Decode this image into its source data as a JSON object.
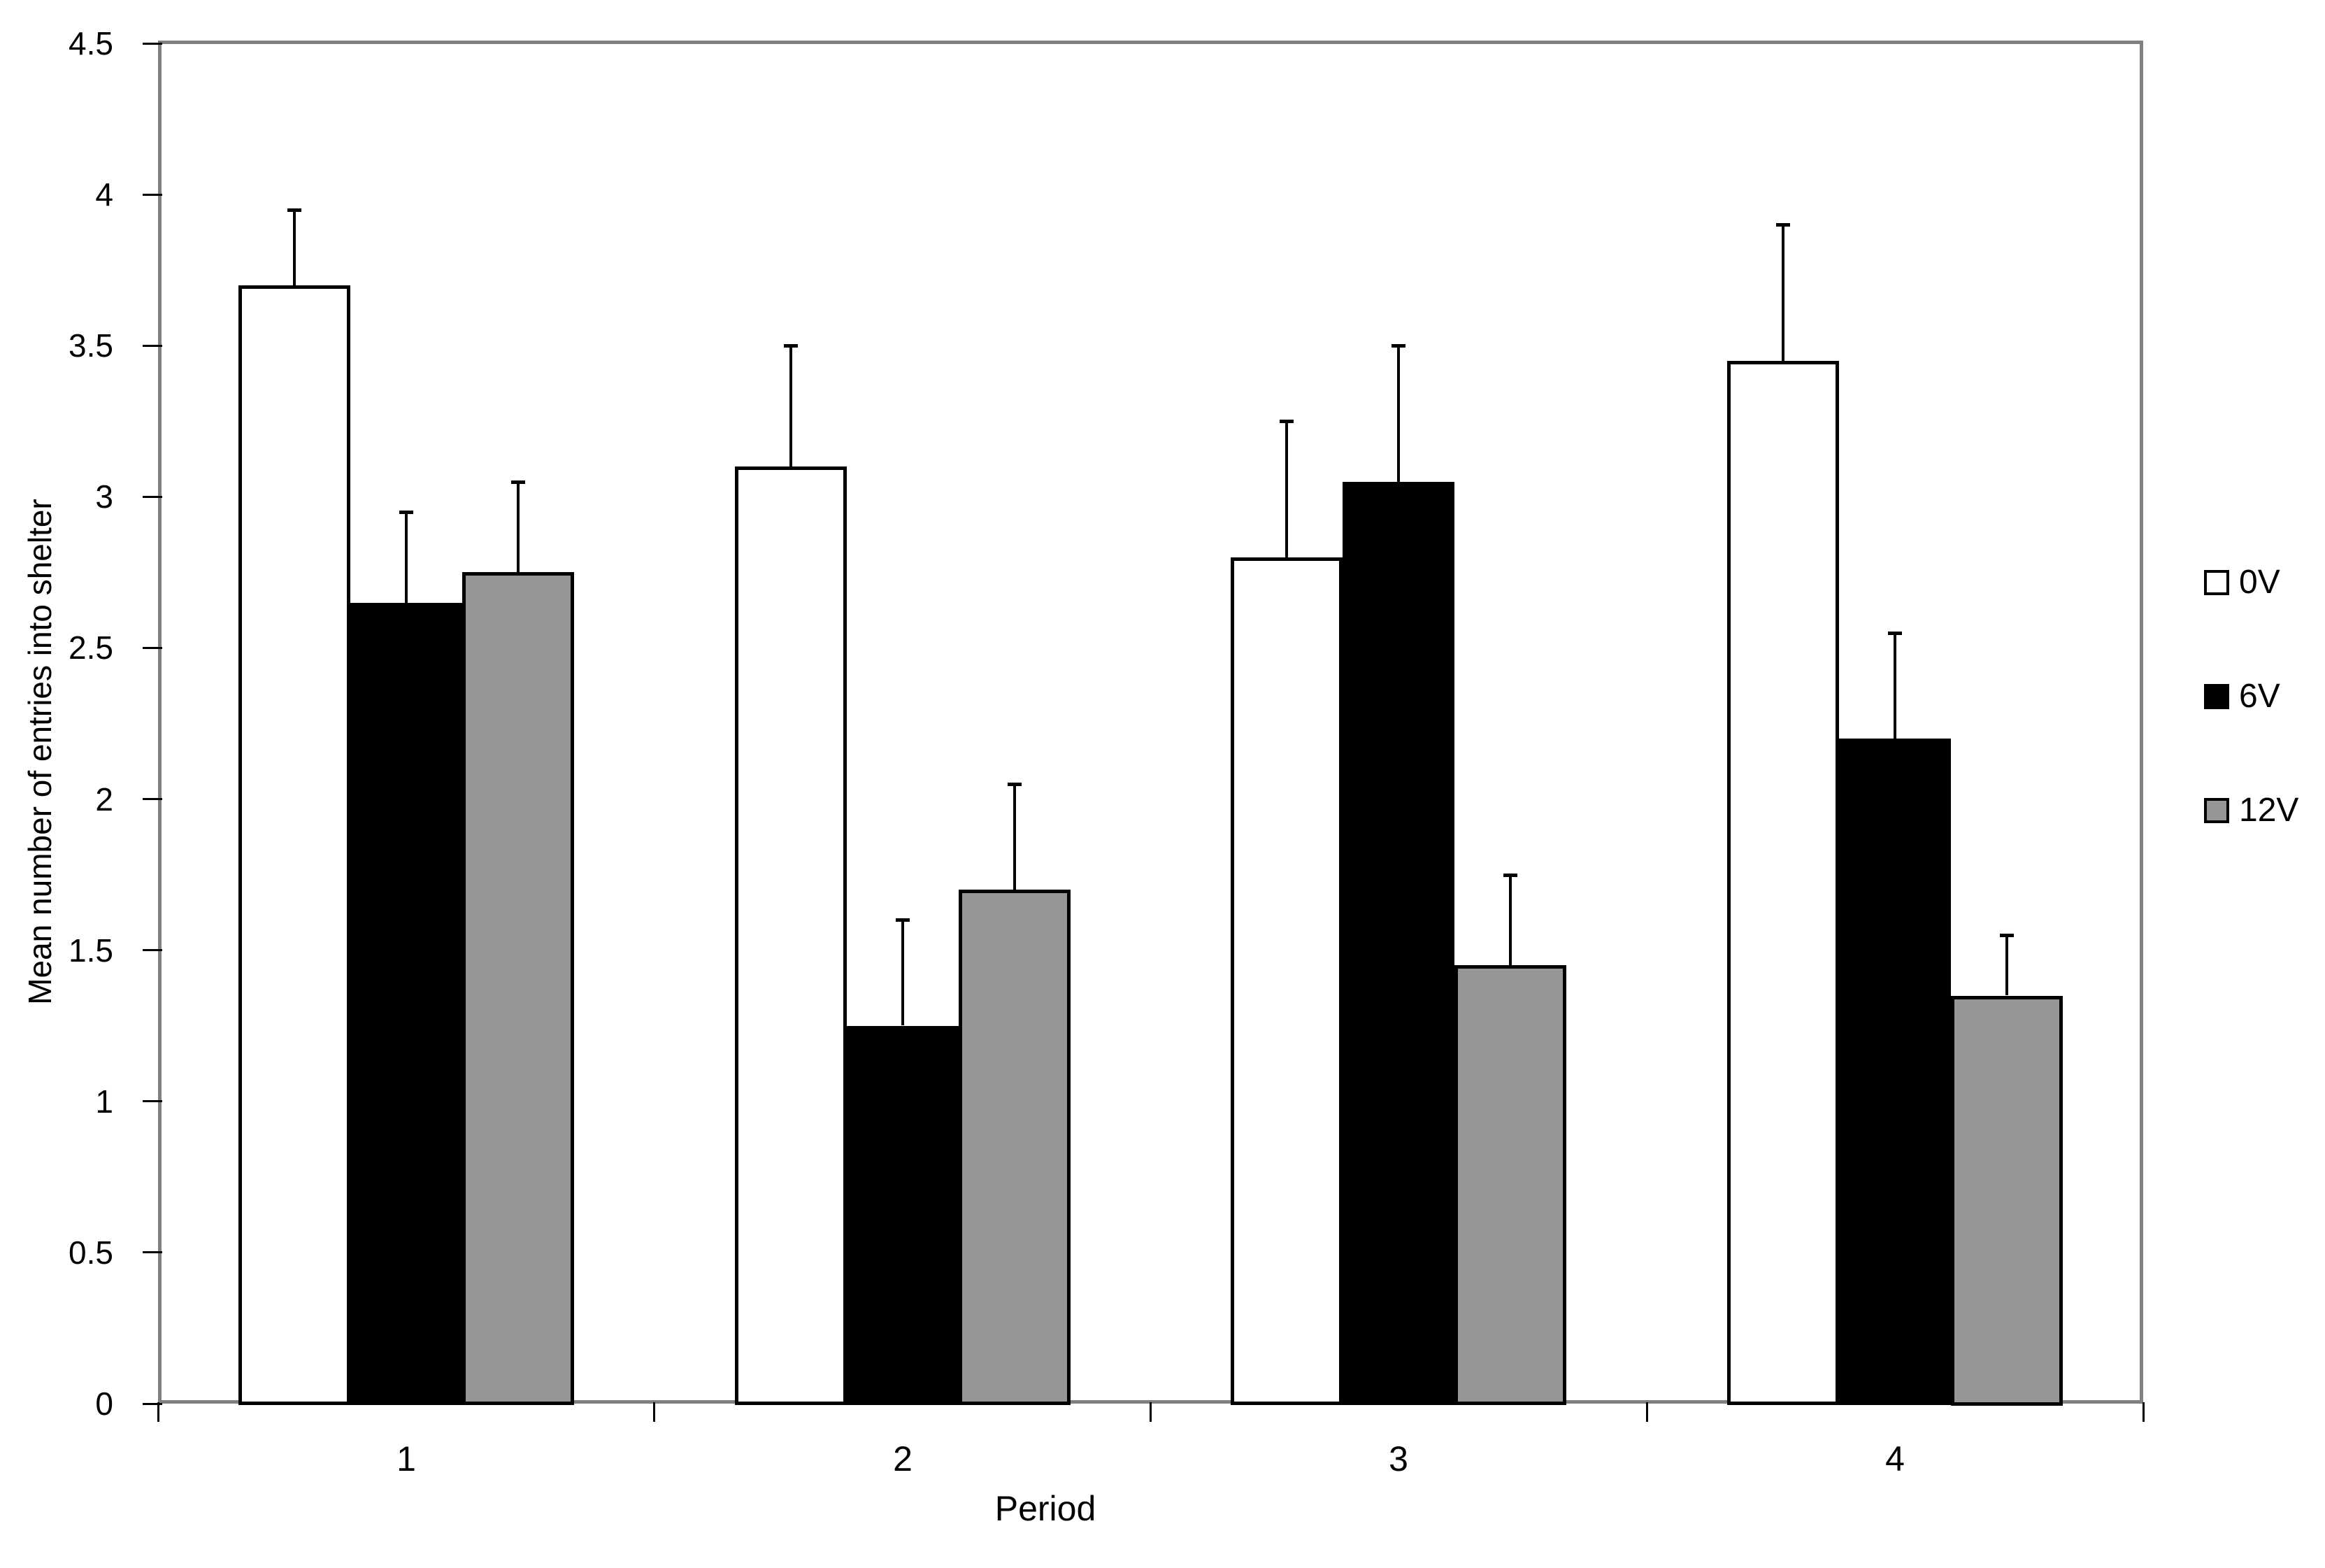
{
  "chart_data": {
    "type": "bar",
    "title": "",
    "xlabel": "Period",
    "ylabel": "Mean number of entries into shelter",
    "categories": [
      "1",
      "2",
      "3",
      "4"
    ],
    "series": [
      {
        "name": "0V",
        "fill": "#FFFFFF",
        "values": [
          3.7,
          3.1,
          2.8,
          3.45
        ],
        "error_plus": [
          0.25,
          0.4,
          0.45,
          0.45
        ]
      },
      {
        "name": "6V",
        "fill": "#000000",
        "values": [
          2.65,
          1.25,
          3.05,
          2.2
        ],
        "error_plus": [
          0.3,
          0.35,
          0.45,
          0.35
        ]
      },
      {
        "name": "12V",
        "fill": "#969696",
        "values": [
          2.75,
          1.7,
          1.45,
          1.35
        ],
        "error_plus": [
          0.3,
          0.35,
          0.3,
          0.2
        ]
      }
    ],
    "ylim": [
      0,
      4.5
    ],
    "ytick_step": 0.5,
    "ytick_labels": [
      "0",
      "0.5",
      "1",
      "1.5",
      "2",
      "2.5",
      "3",
      "3.5",
      "4",
      "4.5"
    ],
    "grid": false,
    "legend_position": "right-outside",
    "error_bars": "plus-direction",
    "colors": {
      "axis_border": "#808080",
      "tick": "#000000",
      "bar_border": "#000000",
      "error_bar": "#000000",
      "text": "#000000",
      "background": "#FFFFFF"
    }
  }
}
